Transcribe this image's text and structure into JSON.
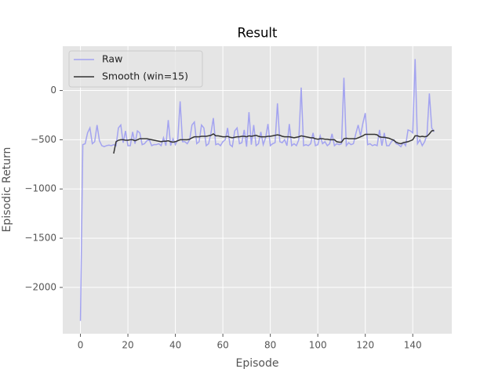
{
  "chart_data": {
    "type": "line",
    "title": "Result",
    "x_label": "Episode",
    "y_label": "Episodic Return",
    "x": [
      0,
      1,
      2,
      3,
      4,
      5,
      6,
      7,
      8,
      9,
      10,
      11,
      12,
      13,
      14,
      15,
      16,
      17,
      18,
      19,
      20,
      21,
      22,
      23,
      24,
      25,
      26,
      27,
      28,
      29,
      30,
      31,
      32,
      33,
      34,
      35,
      36,
      37,
      38,
      39,
      40,
      41,
      42,
      43,
      44,
      45,
      46,
      47,
      48,
      49,
      50,
      51,
      52,
      53,
      54,
      55,
      56,
      57,
      58,
      59,
      60,
      61,
      62,
      63,
      64,
      65,
      66,
      67,
      68,
      69,
      70,
      71,
      72,
      73,
      74,
      75,
      76,
      77,
      78,
      79,
      80,
      81,
      82,
      83,
      84,
      85,
      86,
      87,
      88,
      89,
      90,
      91,
      92,
      93,
      94,
      95,
      96,
      97,
      98,
      99,
      100,
      101,
      102,
      103,
      104,
      105,
      106,
      107,
      108,
      109,
      110,
      111,
      112,
      113,
      114,
      115,
      116,
      117,
      118,
      119,
      120,
      121,
      122,
      123,
      124,
      125,
      126,
      127,
      128,
      129,
      130,
      131,
      132,
      133,
      134,
      135,
      136,
      137,
      138,
      139,
      140,
      141,
      142,
      143,
      144,
      145,
      146,
      147,
      148,
      149
    ],
    "series": [
      {
        "name": "Raw",
        "color": "#a3a3f0",
        "values": [
          -2340,
          -550,
          -540,
          -430,
          -380,
          -540,
          -520,
          -350,
          -510,
          -560,
          -570,
          -560,
          -555,
          -560,
          -550,
          -560,
          -380,
          -350,
          -530,
          -410,
          -560,
          -560,
          -420,
          -540,
          -410,
          -430,
          -550,
          -540,
          -510,
          -500,
          -560,
          -550,
          -550,
          -540,
          -560,
          -480,
          -560,
          -300,
          -560,
          -490,
          -550,
          -500,
          -110,
          -520,
          -520,
          -540,
          -500,
          -350,
          -320,
          -540,
          -520,
          -350,
          -380,
          -560,
          -540,
          -430,
          -280,
          -550,
          -540,
          -560,
          -520,
          -500,
          -380,
          -550,
          -570,
          -410,
          -380,
          -540,
          -530,
          -400,
          -570,
          -220,
          -550,
          -350,
          -560,
          -540,
          -420,
          -550,
          -480,
          -340,
          -560,
          -540,
          -530,
          -130,
          -520,
          -530,
          -500,
          -560,
          -340,
          -560,
          -540,
          -560,
          -500,
          30,
          -560,
          -550,
          -560,
          -540,
          -430,
          -560,
          -550,
          -460,
          -540,
          -520,
          -560,
          -540,
          -440,
          -560,
          -540,
          -550,
          -540,
          130,
          -560,
          -530,
          -550,
          -540,
          -440,
          -350,
          -460,
          -330,
          -230,
          -550,
          -540,
          -560,
          -550,
          -560,
          -400,
          -560,
          -430,
          -560,
          -560,
          -520,
          -500,
          -540,
          -550,
          -570,
          -530,
          -560,
          -400,
          -410,
          -430,
          320,
          -540,
          -500,
          -560,
          -520,
          -450,
          -30,
          -380,
          -420
        ]
      },
      {
        "name": "Smooth (win=15)",
        "color": "#333333",
        "values": [
          null,
          null,
          null,
          null,
          null,
          null,
          null,
          null,
          null,
          null,
          null,
          null,
          null,
          null,
          -640,
          -520,
          -505,
          -500,
          -500,
          -505,
          -505,
          -500,
          -500,
          -510,
          -500,
          -490,
          -490,
          -490,
          -490,
          -495,
          -500,
          -505,
          -510,
          -515,
          -520,
          -515,
          -515,
          -510,
          -520,
          -525,
          -520,
          -510,
          -500,
          -500,
          -500,
          -500,
          -495,
          -480,
          -470,
          -470,
          -470,
          -465,
          -465,
          -465,
          -460,
          -455,
          -440,
          -460,
          -460,
          -465,
          -470,
          -470,
          -465,
          -475,
          -480,
          -475,
          -470,
          -470,
          -465,
          -465,
          -470,
          -460,
          -465,
          -460,
          -455,
          -465,
          -470,
          -470,
          -470,
          -465,
          -465,
          -460,
          -455,
          -450,
          -455,
          -465,
          -470,
          -470,
          -470,
          -475,
          -480,
          -475,
          -470,
          -460,
          -465,
          -470,
          -475,
          -480,
          -480,
          -490,
          -495,
          -490,
          -490,
          -495,
          -495,
          -500,
          -500,
          -500,
          -520,
          -525,
          -525,
          -490,
          -485,
          -490,
          -490,
          -490,
          -490,
          -480,
          -470,
          -460,
          -445,
          -445,
          -445,
          -445,
          -445,
          -450,
          -470,
          -475,
          -475,
          -480,
          -485,
          -495,
          -505,
          -525,
          -535,
          -540,
          -530,
          -525,
          -520,
          -510,
          -500,
          -460,
          -460,
          -470,
          -465,
          -470,
          -465,
          -440,
          -410,
          -405
        ]
      }
    ],
    "xlim": [
      -7.45,
      156.45
    ],
    "ylim": [
      -2470,
      450
    ],
    "xticks": [
      0,
      20,
      40,
      60,
      80,
      100,
      120,
      140
    ],
    "yticks": [
      0,
      {
        "value": -500,
        "label": "−500"
      },
      {
        "value": -1000,
        "label": "−1000"
      },
      {
        "value": -1500,
        "label": "−1500"
      },
      {
        "value": -2000,
        "label": "−2000"
      }
    ],
    "grid": true,
    "legend": "upper left"
  }
}
